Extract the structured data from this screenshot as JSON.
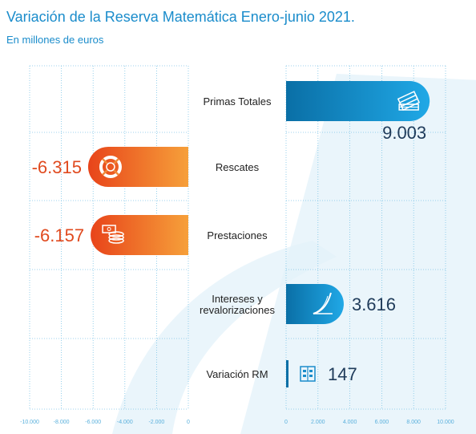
{
  "title": "Variación de la Reserva Matemática Enero-junio 2021.",
  "subtitle": "En millones de euros",
  "colors": {
    "title": "#1a8ccb",
    "positive_dark": "#0a6fa6",
    "positive_light": "#20a8e6",
    "negative_dark": "#e8441a",
    "negative_light": "#f6a03a",
    "negative_text": "#e04a1f",
    "positive_text": "#1f3b5a",
    "grid": "#7cc4e6",
    "watermark": "#e3f1f9"
  },
  "chart_data": {
    "type": "bar",
    "orientation": "horizontal",
    "categories": [
      "Primas Totales",
      "Rescates",
      "Prestaciones",
      "Intereses y revalorizaciones",
      "Variación RM"
    ],
    "category_lines": [
      [
        "Primas Totales"
      ],
      [
        "Rescates"
      ],
      [
        "Prestaciones"
      ],
      [
        "Intereses y",
        "revalorizaciones"
      ],
      [
        "Variación RM"
      ]
    ],
    "values": [
      9003,
      -6315,
      -6157,
      3616,
      147
    ],
    "value_labels": [
      "9.003",
      "-6.315",
      "-6.157",
      "3.616",
      "147"
    ],
    "icons": [
      "banknotes-icon",
      "lifebuoy-icon",
      "cash-coins-icon",
      "growth-curve-icon",
      "ledger-icon"
    ],
    "left_axis": {
      "range": [
        -10000,
        0
      ],
      "ticks": [
        -10000,
        -8000,
        -6000,
        -4000,
        -2000,
        0
      ],
      "tick_labels": [
        "-10.000",
        "-8.000",
        "-6.000",
        "-4.000",
        "-2.000",
        "0"
      ]
    },
    "right_axis": {
      "range": [
        0,
        10000
      ],
      "ticks": [
        0,
        2000,
        4000,
        6000,
        8000,
        10000
      ],
      "tick_labels": [
        "0",
        "2.000",
        "4.000",
        "6.000",
        "8.000",
        "10.000"
      ]
    },
    "grid": true,
    "legend": "none"
  }
}
